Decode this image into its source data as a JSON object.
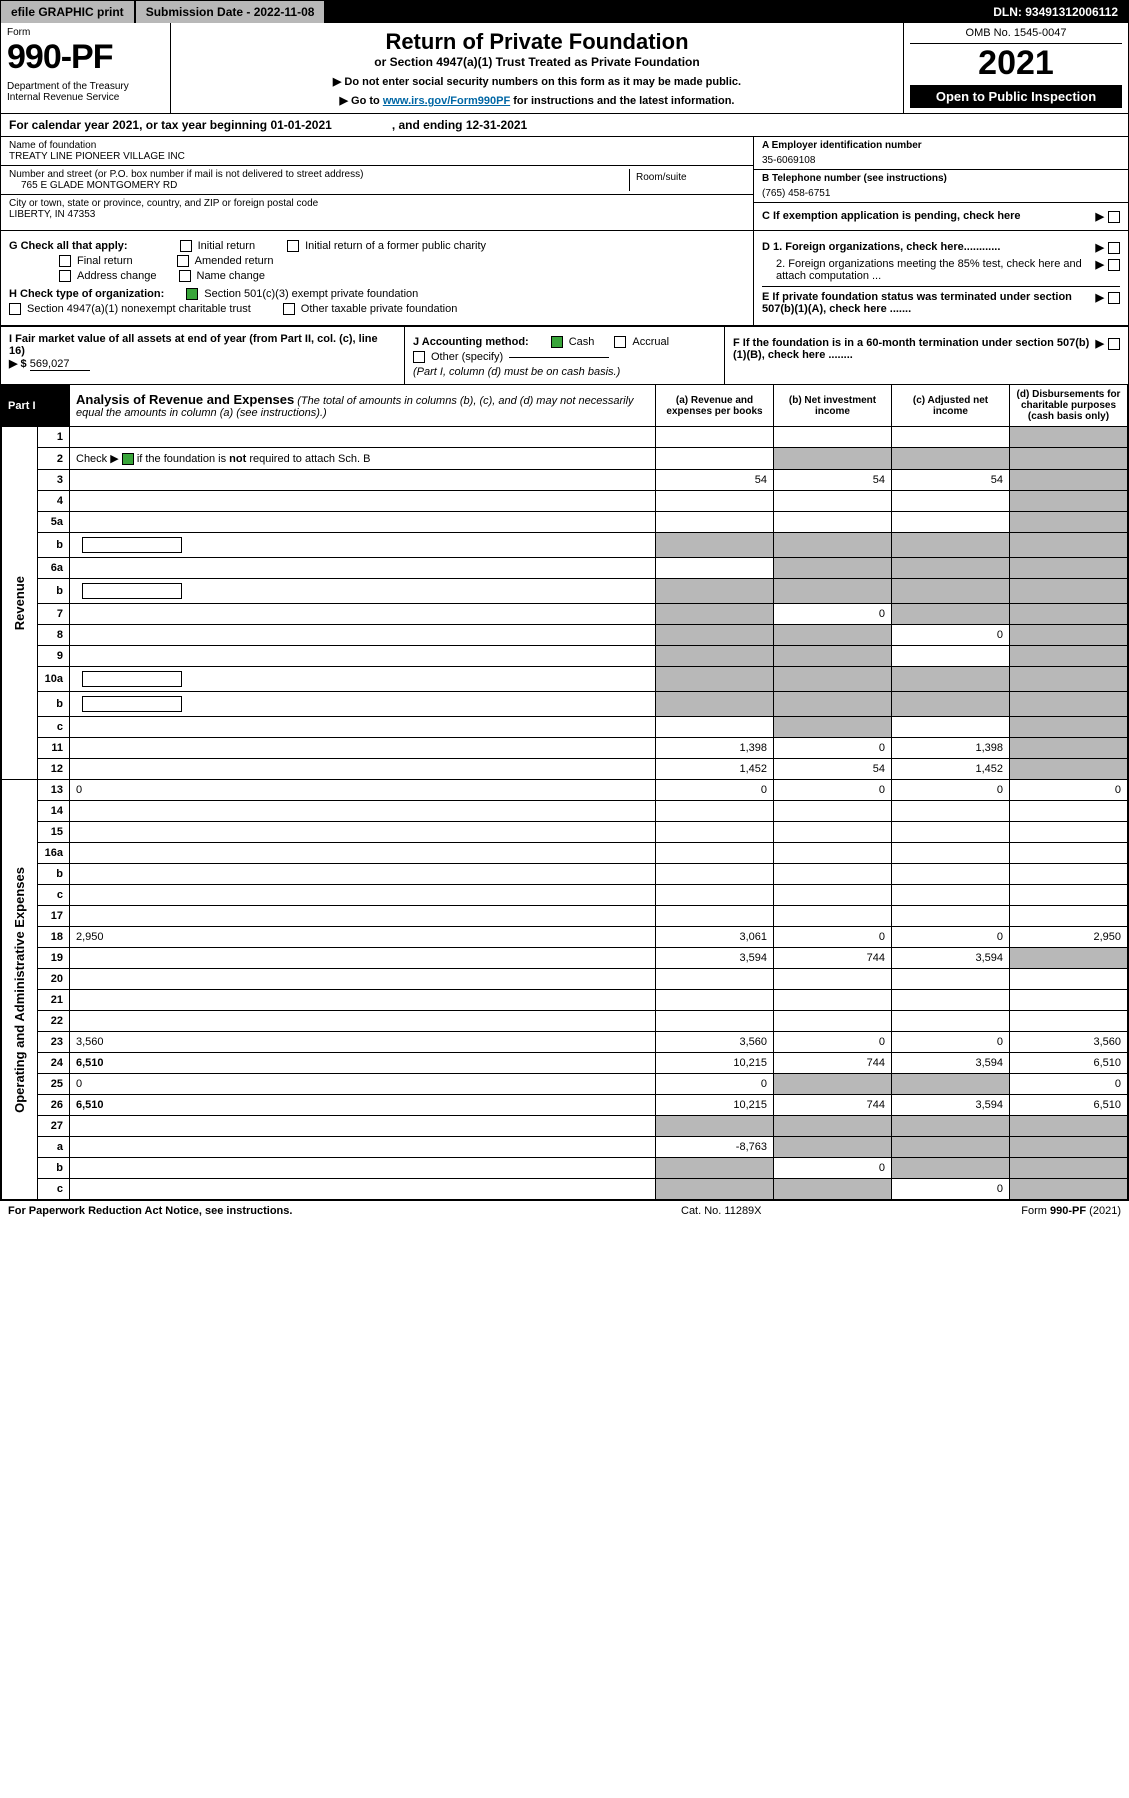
{
  "topbar": {
    "efile": "efile GRAPHIC print",
    "sub_label": "Submission Date - 2022-11-08",
    "dln": "DLN: 93491312006112"
  },
  "header": {
    "form_word": "Form",
    "form_num": "990-PF",
    "dept": "Department of the Treasury\nInternal Revenue Service",
    "title": "Return of Private Foundation",
    "subtitle": "or Section 4947(a)(1) Trust Treated as Private Foundation",
    "note1": "▶ Do not enter social security numbers on this form as it may be made public.",
    "note2_pre": "▶ Go to ",
    "note2_link": "www.irs.gov/Form990PF",
    "note2_post": " for instructions and the latest information.",
    "omb": "OMB No. 1545-0047",
    "year": "2021",
    "open": "Open to Public Inspection"
  },
  "cal": {
    "begin": "For calendar year 2021, or tax year beginning 01-01-2021",
    "end": ", and ending 12-31-2021"
  },
  "entity": {
    "name_lbl": "Name of foundation",
    "name_val": "TREATY LINE PIONEER VILLAGE INC",
    "addr_lbl": "Number and street (or P.O. box number if mail is not delivered to street address)",
    "addr_val": "765 E GLADE MONTGOMERY RD",
    "room_lbl": "Room/suite",
    "city_lbl": "City or town, state or province, country, and ZIP or foreign postal code",
    "city_val": "LIBERTY, IN  47353",
    "a_lbl": "A Employer identification number",
    "a_val": "35-6069108",
    "b_lbl": "B Telephone number (see instructions)",
    "b_val": "(765) 458-6751",
    "c_lbl": "C If exemption application is pending, check here"
  },
  "g": {
    "lead": "G Check all that apply:",
    "opts": [
      "Initial return",
      "Initial return of a former public charity",
      "Final return",
      "Amended return",
      "Address change",
      "Name change"
    ]
  },
  "h": {
    "lead": "H Check type of organization:",
    "opt1": "Section 501(c)(3) exempt private foundation",
    "opt2": "Section 4947(a)(1) nonexempt charitable trust",
    "opt3": "Other taxable private foundation"
  },
  "i": {
    "lead": "I Fair market value of all assets at end of year (from Part II, col. (c), line 16)",
    "arrow": "▶ $",
    "val": "569,027"
  },
  "j": {
    "lead": "J Accounting method:",
    "cash": "Cash",
    "accrual": "Accrual",
    "other": "Other (specify)",
    "note": "(Part I, column (d) must be on cash basis.)"
  },
  "r": {
    "d1": "D 1. Foreign organizations, check here............",
    "d2": "2. Foreign organizations meeting the 85% test, check here and attach computation ...",
    "e": "E  If private foundation status was terminated under section 507(b)(1)(A), check here .......",
    "f": "F  If the foundation is in a 60-month termination under section 507(b)(1)(B), check here ........"
  },
  "part1": {
    "badge": "Part I",
    "title": "Analysis of Revenue and Expenses",
    "paren": "(The total of amounts in columns (b), (c), and (d) may not necessarily equal the amounts in column (a) (see instructions).)",
    "col_a": "(a) Revenue and expenses per books",
    "col_b": "(b) Net investment income",
    "col_c": "(c) Adjusted net income",
    "col_d": "(d) Disbursements for charitable purposes (cash basis only)"
  },
  "sides": {
    "rev": "Revenue",
    "oae": "Operating and Administrative Expenses"
  },
  "rows": [
    {
      "n": "1",
      "d": "",
      "a": "",
      "b": "",
      "c": "",
      "d_shade": true
    },
    {
      "n": "2",
      "d": "",
      "chk": true,
      "a": "",
      "b": "",
      "c": "",
      "d_shade": true,
      "b_shade": true,
      "c_shade": true
    },
    {
      "n": "3",
      "d": "",
      "a": "54",
      "b": "54",
      "c": "54",
      "d_shade": true
    },
    {
      "n": "4",
      "d": "",
      "a": "",
      "b": "",
      "c": "",
      "d_shade": true
    },
    {
      "n": "5a",
      "d": "",
      "a": "",
      "b": "",
      "c": "",
      "d_shade": true
    },
    {
      "n": "b",
      "d": "",
      "box": true,
      "a": "",
      "b": "",
      "c": "",
      "d_shade": true,
      "a_shade": true,
      "b_shade": true,
      "c_shade": true
    },
    {
      "n": "6a",
      "d": "",
      "a": "",
      "b": "",
      "c": "",
      "d_shade": true,
      "b_shade": true,
      "c_shade": true
    },
    {
      "n": "b",
      "d": "",
      "box": true,
      "a": "",
      "b": "",
      "c": "",
      "d_shade": true,
      "a_shade": true,
      "b_shade": true,
      "c_shade": true
    },
    {
      "n": "7",
      "d": "",
      "a": "",
      "b": "0",
      "c": "",
      "d_shade": true,
      "a_shade": true,
      "c_shade": true
    },
    {
      "n": "8",
      "d": "",
      "a": "",
      "b": "",
      "c": "0",
      "d_shade": true,
      "a_shade": true,
      "b_shade": true
    },
    {
      "n": "9",
      "d": "",
      "a": "",
      "b": "",
      "c": "",
      "d_shade": true,
      "a_shade": true,
      "b_shade": true
    },
    {
      "n": "10a",
      "d": "",
      "box": true,
      "a": "",
      "b": "",
      "c": "",
      "d_shade": true,
      "a_shade": true,
      "b_shade": true,
      "c_shade": true
    },
    {
      "n": "b",
      "d": "",
      "box": true,
      "a": "",
      "b": "",
      "c": "",
      "d_shade": true,
      "a_shade": true,
      "b_shade": true,
      "c_shade": true
    },
    {
      "n": "c",
      "d": "",
      "a": "",
      "b": "",
      "c": "",
      "d_shade": true,
      "b_shade": true
    },
    {
      "n": "11",
      "d": "",
      "a": "1,398",
      "b": "0",
      "c": "1,398",
      "d_shade": true
    },
    {
      "n": "12",
      "d": "",
      "bold": true,
      "a": "1,452",
      "b": "54",
      "c": "1,452",
      "d_shade": true
    },
    {
      "n": "13",
      "d": "0",
      "a": "0",
      "b": "0",
      "c": "0"
    },
    {
      "n": "14",
      "d": "",
      "a": "",
      "b": "",
      "c": ""
    },
    {
      "n": "15",
      "d": "",
      "a": "",
      "b": "",
      "c": ""
    },
    {
      "n": "16a",
      "d": "",
      "a": "",
      "b": "",
      "c": ""
    },
    {
      "n": "b",
      "d": "",
      "a": "",
      "b": "",
      "c": ""
    },
    {
      "n": "c",
      "d": "",
      "a": "",
      "b": "",
      "c": ""
    },
    {
      "n": "17",
      "d": "",
      "a": "",
      "b": "",
      "c": ""
    },
    {
      "n": "18",
      "d": "2,950",
      "a": "3,061",
      "b": "0",
      "c": "0"
    },
    {
      "n": "19",
      "d": "",
      "a": "3,594",
      "b": "744",
      "c": "3,594",
      "d_shade": true
    },
    {
      "n": "20",
      "d": "",
      "a": "",
      "b": "",
      "c": ""
    },
    {
      "n": "21",
      "d": "",
      "a": "",
      "b": "",
      "c": ""
    },
    {
      "n": "22",
      "d": "",
      "a": "",
      "b": "",
      "c": ""
    },
    {
      "n": "23",
      "d": "3,560",
      "a": "3,560",
      "b": "0",
      "c": "0"
    },
    {
      "n": "24",
      "d": "6,510",
      "bold": true,
      "a": "10,215",
      "b": "744",
      "c": "3,594"
    },
    {
      "n": "25",
      "d": "0",
      "a": "0",
      "b": "",
      "c": "",
      "b_shade": true,
      "c_shade": true
    },
    {
      "n": "26",
      "d": "6,510",
      "bold": true,
      "a": "10,215",
      "b": "744",
      "c": "3,594"
    },
    {
      "n": "27",
      "d": "",
      "a": "",
      "b": "",
      "c": "",
      "a_shade": true,
      "b_shade": true,
      "c_shade": true,
      "d_shade": true
    },
    {
      "n": "a",
      "d": "",
      "bold": true,
      "a": "-8,763",
      "b": "",
      "c": "",
      "b_shade": true,
      "c_shade": true,
      "d_shade": true
    },
    {
      "n": "b",
      "d": "",
      "bold": true,
      "a": "",
      "b": "0",
      "c": "",
      "a_shade": true,
      "c_shade": true,
      "d_shade": true
    },
    {
      "n": "c",
      "d": "",
      "bold": true,
      "a": "",
      "b": "",
      "c": "0",
      "a_shade": true,
      "b_shade": true,
      "d_shade": true
    }
  ],
  "footer": {
    "l": "For Paperwork Reduction Act Notice, see instructions.",
    "m": "Cat. No. 11289X",
    "r": "Form 990-PF (2021)"
  },
  "colors": {
    "shade": "#b8b8b8",
    "check_green": "#39a53a",
    "link": "#0067a5"
  }
}
